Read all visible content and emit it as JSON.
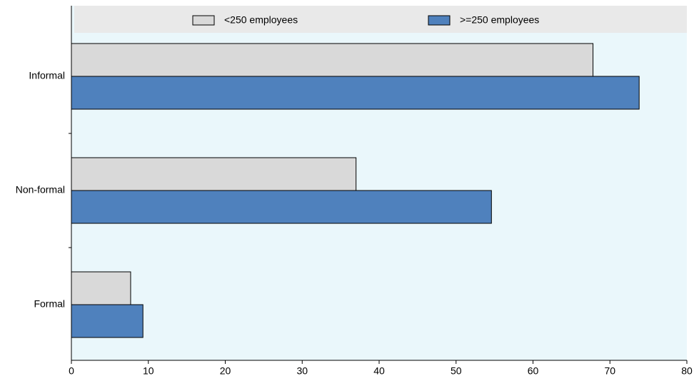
{
  "chart_data": {
    "type": "hbar",
    "categories": [
      "Informal",
      "Non-formal",
      "Formal"
    ],
    "series": [
      {
        "name": "<250 employees",
        "color": "#d9d9d9",
        "values": [
          67.8,
          37.0,
          7.7
        ]
      },
      {
        "name": ">=250 employees",
        "color": "#4f81bd",
        "values": [
          73.8,
          54.6,
          9.3
        ]
      }
    ],
    "xlim": [
      0,
      80
    ],
    "xticks": [
      0,
      10,
      20,
      30,
      40,
      50,
      60,
      70,
      80
    ]
  }
}
